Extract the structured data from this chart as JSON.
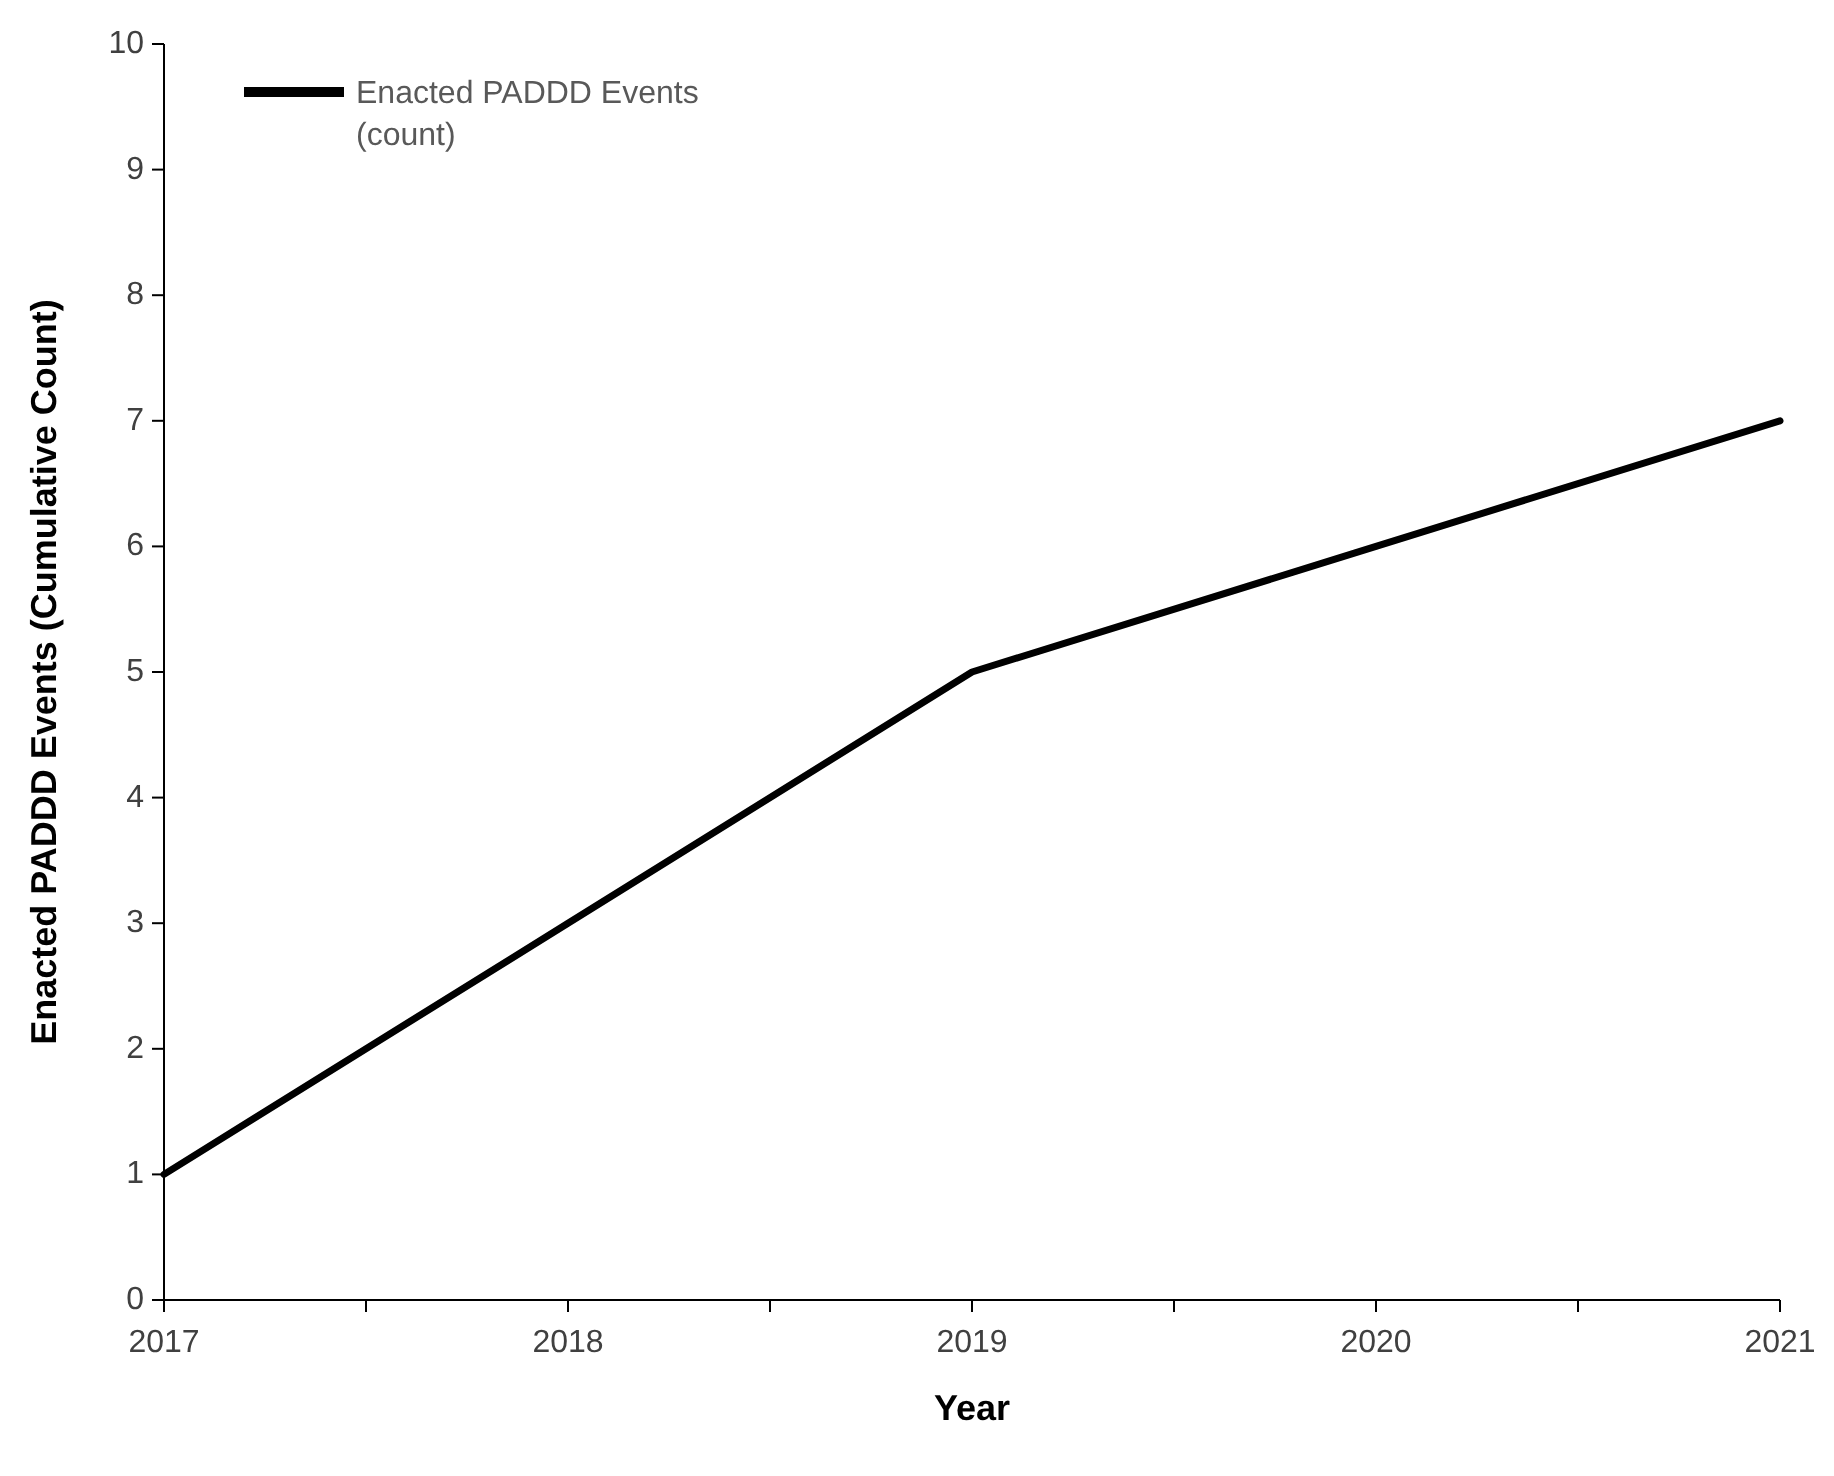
{
  "chart_data": {
    "type": "line",
    "xlabel": "Year",
    "ylabel": "Enacted PADDD Events (Cumulative Count)",
    "x": [
      2017,
      2018,
      2019,
      2020,
      2021
    ],
    "series": [
      {
        "name": "Enacted PADDD Events (count)",
        "color": "#000000",
        "values": [
          1,
          3,
          5,
          6,
          7
        ]
      }
    ],
    "xlim": [
      2017,
      2021
    ],
    "xticks": [
      2017,
      {
        "value": 2017.5,
        "label": null
      },
      2018,
      {
        "value": 2018.5,
        "label": null
      },
      2019,
      {
        "value": 2019.5,
        "label": null
      },
      2020,
      {
        "value": 2020.5,
        "label": null
      },
      2021
    ],
    "ylim": [
      0,
      10
    ],
    "yticks": [
      0,
      1,
      2,
      3,
      4,
      5,
      6,
      7,
      8,
      9,
      10
    ],
    "grid": false,
    "legend": "top left",
    "marker": "none",
    "line_style": "solid"
  }
}
